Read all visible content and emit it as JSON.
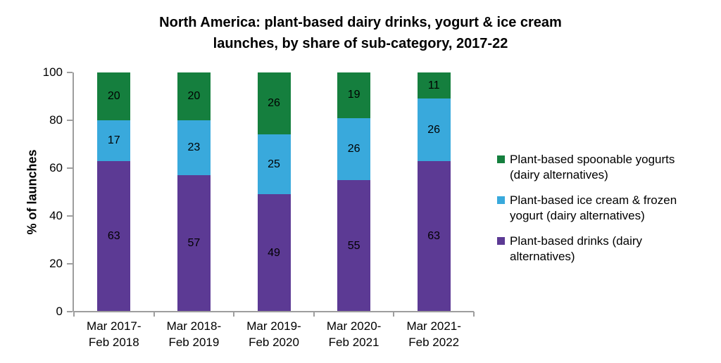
{
  "chart_data": {
    "type": "bar",
    "stacked": true,
    "title": "North America: plant-based dairy drinks, yogurt & ice cream\nlaunches, by share of sub-category, 2017-22",
    "ylabel": "% of launches",
    "xlabel": "",
    "ylim": [
      0,
      100
    ],
    "yticks": [
      0,
      20,
      40,
      60,
      80,
      100
    ],
    "grid": false,
    "legend_position": "right",
    "data_labels": true,
    "categories": [
      "Mar 2017-\nFeb 2018",
      "Mar 2018-\nFeb 2019",
      "Mar 2019-\nFeb 2020",
      "Mar 2020-\nFeb 2021",
      "Mar 2021-\nFeb 2022"
    ],
    "series": [
      {
        "name": "Plant-based drinks (dairy alternatives)",
        "color": "#5C3A94",
        "values": [
          63,
          57,
          49,
          55,
          63
        ]
      },
      {
        "name": "Plant-based ice cream & frozen yogurt (dairy alternatives)",
        "color": "#39A9DC",
        "values": [
          17,
          23,
          25,
          26,
          26
        ]
      },
      {
        "name": "Plant-based spoonable yogurts (dairy alternatives)",
        "color": "#157F3E",
        "values": [
          20,
          20,
          26,
          19,
          11
        ]
      }
    ]
  }
}
